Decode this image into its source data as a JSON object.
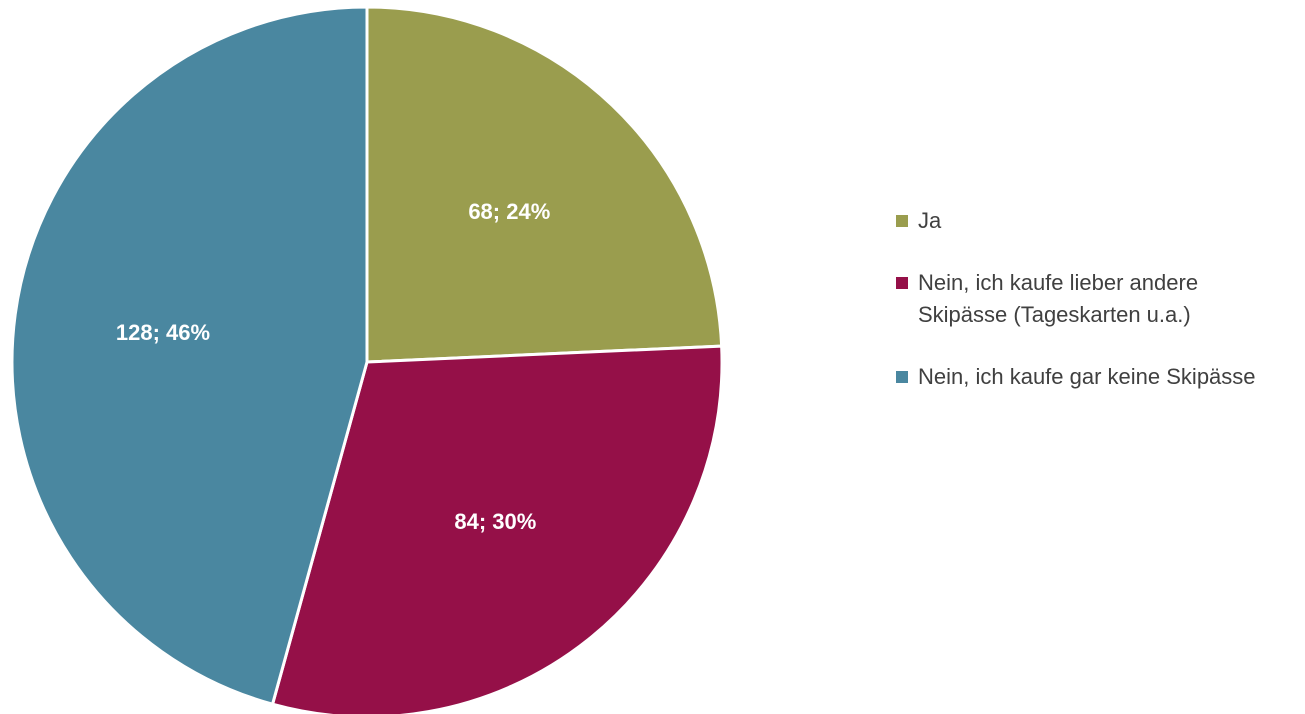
{
  "chart_data": {
    "type": "pie",
    "categories": [
      "Ja",
      "Nein, ich kaufe lieber andere Skipässe (Tageskarten u.a.)",
      "Nein, ich kaufe gar keine Skipässe"
    ],
    "values": [
      68,
      84,
      128
    ],
    "value_labels": [
      "68; 24%",
      "84; 30%",
      "128; 46%"
    ],
    "colors": [
      "#9a9d4e",
      "#951048",
      "#4a87a0"
    ],
    "legend": "right"
  }
}
